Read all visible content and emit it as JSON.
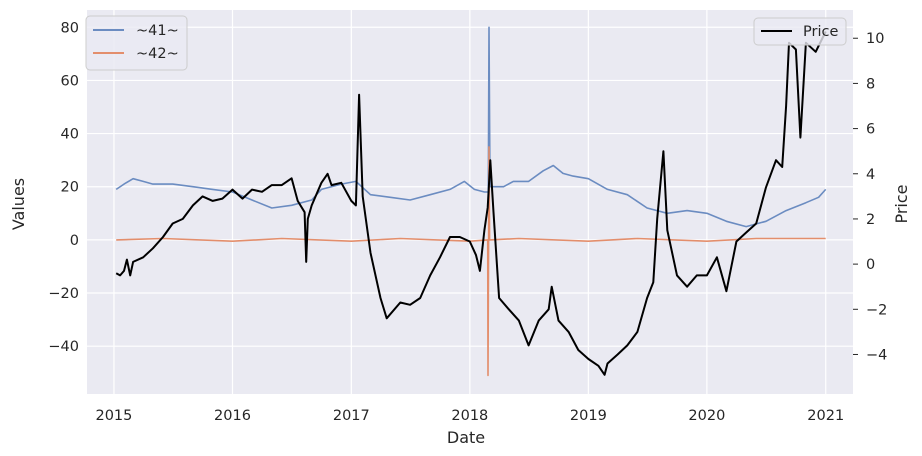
{
  "chart_data": {
    "type": "line",
    "xlabel": "Date",
    "ylabel": "Values",
    "y2label": "Price",
    "xlim": [
      "2014-10-10",
      "2021-03-26"
    ],
    "ylim": [
      -58,
      86.5
    ],
    "y2lim": [
      -5.75,
      11.25
    ],
    "x_ticks": [
      "2015-01-01",
      "2016-01-01",
      "2017-01-01",
      "2018-01-01",
      "2019-01-01",
      "2020-01-01",
      "2021-01-01"
    ],
    "x_tick_labels": [
      "2015",
      "2016",
      "2017",
      "2018",
      "2019",
      "2020",
      "2021"
    ],
    "y_ticks": [
      -40,
      -20,
      0,
      20,
      40,
      60,
      80
    ],
    "y_tick_labels": [
      "−40",
      "−20",
      "0",
      "20",
      "40",
      "60",
      "80"
    ],
    "y2_ticks": [
      -4,
      -2,
      0,
      2,
      4,
      6,
      8,
      10
    ],
    "y2_tick_labels": [
      "−4",
      "−2",
      "0",
      "2",
      "4",
      "6",
      "8",
      "10"
    ],
    "grid": true,
    "legend_left": {
      "placement": "upper-left",
      "entries": [
        "~41~",
        "~42~"
      ]
    },
    "legend_right": {
      "placement": "upper-right",
      "entries": [
        "Price"
      ]
    },
    "series": [
      {
        "name": "~41~",
        "axis": "left",
        "color": "#6b8cc1",
        "points": [
          [
            "2015-01-08",
            19
          ],
          [
            "2015-02-01",
            21
          ],
          [
            "2015-03-01",
            23
          ],
          [
            "2015-04-01",
            22
          ],
          [
            "2015-05-01",
            21
          ],
          [
            "2015-07-01",
            21
          ],
          [
            "2015-09-01",
            20
          ],
          [
            "2015-11-01",
            19
          ],
          [
            "2016-01-01",
            18
          ],
          [
            "2016-03-01",
            15
          ],
          [
            "2016-05-01",
            12
          ],
          [
            "2016-07-01",
            13
          ],
          [
            "2016-09-01",
            15
          ],
          [
            "2016-10-01",
            19
          ],
          [
            "2016-12-01",
            21
          ],
          [
            "2017-01-15",
            22
          ],
          [
            "2017-03-01",
            17
          ],
          [
            "2017-05-01",
            16
          ],
          [
            "2017-07-01",
            15
          ],
          [
            "2017-09-01",
            17
          ],
          [
            "2017-11-01",
            19
          ],
          [
            "2017-12-15",
            22
          ],
          [
            "2018-01-15",
            19
          ],
          [
            "2018-02-15",
            18
          ],
          [
            "2018-02-27",
            18
          ],
          [
            "2018-03-01",
            80
          ],
          [
            "2018-03-04",
            20
          ],
          [
            "2018-04-15",
            20
          ],
          [
            "2018-05-15",
            22
          ],
          [
            "2018-07-01",
            22
          ],
          [
            "2018-08-15",
            26
          ],
          [
            "2018-09-15",
            28
          ],
          [
            "2018-10-15",
            25
          ],
          [
            "2018-11-15",
            24
          ],
          [
            "2019-01-01",
            23
          ],
          [
            "2019-03-01",
            19
          ],
          [
            "2019-05-01",
            17
          ],
          [
            "2019-07-01",
            12
          ],
          [
            "2019-09-01",
            10
          ],
          [
            "2019-11-01",
            11
          ],
          [
            "2020-01-01",
            10
          ],
          [
            "2020-03-01",
            7
          ],
          [
            "2020-05-01",
            5
          ],
          [
            "2020-07-01",
            7
          ],
          [
            "2020-09-01",
            11
          ],
          [
            "2020-11-01",
            14
          ],
          [
            "2020-12-10",
            16
          ],
          [
            "2021-01-01",
            19
          ]
        ]
      },
      {
        "name": "~42~",
        "axis": "left",
        "color": "#e38e6c",
        "points": [
          [
            "2015-01-08",
            0
          ],
          [
            "2015-06-01",
            0.5
          ],
          [
            "2016-01-01",
            -0.5
          ],
          [
            "2016-06-01",
            0.5
          ],
          [
            "2017-01-01",
            -0.5
          ],
          [
            "2017-06-01",
            0.5
          ],
          [
            "2018-01-01",
            -0.5
          ],
          [
            "2018-02-25",
            0
          ],
          [
            "2018-02-26",
            -51
          ],
          [
            "2018-03-01",
            35
          ],
          [
            "2018-03-03",
            0
          ],
          [
            "2018-06-01",
            0.5
          ],
          [
            "2019-01-01",
            -0.5
          ],
          [
            "2019-06-01",
            0.5
          ],
          [
            "2020-01-01",
            -0.5
          ],
          [
            "2020-06-01",
            0.5
          ],
          [
            "2021-01-01",
            0.5
          ]
        ]
      },
      {
        "name": "Price",
        "axis": "right",
        "color": "#000000",
        "points": [
          [
            "2015-01-08",
            -0.4
          ],
          [
            "2015-01-20",
            -0.5
          ],
          [
            "2015-02-01",
            -0.3
          ],
          [
            "2015-02-10",
            0.2
          ],
          [
            "2015-02-20",
            -0.5
          ],
          [
            "2015-03-01",
            0.1
          ],
          [
            "2015-04-01",
            0.3
          ],
          [
            "2015-05-01",
            0.7
          ],
          [
            "2015-06-01",
            1.2
          ],
          [
            "2015-07-01",
            1.8
          ],
          [
            "2015-08-01",
            2.0
          ],
          [
            "2015-09-01",
            2.6
          ],
          [
            "2015-10-01",
            3.0
          ],
          [
            "2015-11-01",
            2.8
          ],
          [
            "2015-12-01",
            2.9
          ],
          [
            "2016-01-01",
            3.3
          ],
          [
            "2016-02-01",
            2.9
          ],
          [
            "2016-03-01",
            3.3
          ],
          [
            "2016-04-01",
            3.2
          ],
          [
            "2016-05-01",
            3.5
          ],
          [
            "2016-06-01",
            3.5
          ],
          [
            "2016-07-01",
            3.8
          ],
          [
            "2016-07-20",
            2.8
          ],
          [
            "2016-08-10",
            2.3
          ],
          [
            "2016-08-15",
            0.1
          ],
          [
            "2016-08-20",
            2.0
          ],
          [
            "2016-09-01",
            2.6
          ],
          [
            "2016-10-01",
            3.6
          ],
          [
            "2016-10-20",
            4.0
          ],
          [
            "2016-11-01",
            3.5
          ],
          [
            "2016-12-01",
            3.6
          ],
          [
            "2017-01-01",
            2.8
          ],
          [
            "2017-01-15",
            2.6
          ],
          [
            "2017-01-25",
            7.5
          ],
          [
            "2017-02-05",
            3.0
          ],
          [
            "2017-03-01",
            0.5
          ],
          [
            "2017-04-01",
            -1.5
          ],
          [
            "2017-04-20",
            -2.4
          ],
          [
            "2017-06-01",
            -1.7
          ],
          [
            "2017-07-01",
            -1.8
          ],
          [
            "2017-08-01",
            -1.5
          ],
          [
            "2017-09-01",
            -0.5
          ],
          [
            "2017-10-01",
            0.3
          ],
          [
            "2017-11-01",
            1.2
          ],
          [
            "2017-12-01",
            1.2
          ],
          [
            "2018-01-01",
            1.0
          ],
          [
            "2018-01-20",
            0.4
          ],
          [
            "2018-02-01",
            -0.3
          ],
          [
            "2018-02-15",
            1.5
          ],
          [
            "2018-02-25",
            2.5
          ],
          [
            "2018-03-05",
            4.6
          ],
          [
            "2018-03-15",
            2.3
          ],
          [
            "2018-04-01",
            -1.5
          ],
          [
            "2018-05-01",
            -2.0
          ],
          [
            "2018-06-01",
            -2.5
          ],
          [
            "2018-07-01",
            -3.6
          ],
          [
            "2018-08-01",
            -2.5
          ],
          [
            "2018-09-01",
            -2.0
          ],
          [
            "2018-09-10",
            -1.0
          ],
          [
            "2018-10-01",
            -2.5
          ],
          [
            "2018-11-01",
            -3.0
          ],
          [
            "2018-12-01",
            -3.8
          ],
          [
            "2019-01-01",
            -4.2
          ],
          [
            "2019-02-01",
            -4.5
          ],
          [
            "2019-02-20",
            -4.9
          ],
          [
            "2019-03-01",
            -4.4
          ],
          [
            "2019-04-01",
            -4.0
          ],
          [
            "2019-05-01",
            -3.6
          ],
          [
            "2019-06-01",
            -3.0
          ],
          [
            "2019-07-01",
            -1.5
          ],
          [
            "2019-07-20",
            -0.8
          ],
          [
            "2019-08-01",
            2.0
          ],
          [
            "2019-08-20",
            5.0
          ],
          [
            "2019-09-01",
            1.5
          ],
          [
            "2019-10-01",
            -0.5
          ],
          [
            "2019-11-01",
            -1.0
          ],
          [
            "2019-12-01",
            -0.5
          ],
          [
            "2020-01-01",
            -0.5
          ],
          [
            "2020-02-01",
            0.3
          ],
          [
            "2020-03-01",
            -1.2
          ],
          [
            "2020-04-01",
            1.0
          ],
          [
            "2020-05-01",
            1.4
          ],
          [
            "2020-06-01",
            1.8
          ],
          [
            "2020-07-01",
            3.4
          ],
          [
            "2020-08-01",
            4.6
          ],
          [
            "2020-08-20",
            4.3
          ],
          [
            "2020-09-01",
            7.0
          ],
          [
            "2020-09-10",
            9.8
          ],
          [
            "2020-10-01",
            9.5
          ],
          [
            "2020-10-15",
            5.6
          ],
          [
            "2020-11-01",
            9.8
          ],
          [
            "2020-12-01",
            9.4
          ],
          [
            "2021-01-01",
            10.3
          ]
        ]
      }
    ]
  }
}
